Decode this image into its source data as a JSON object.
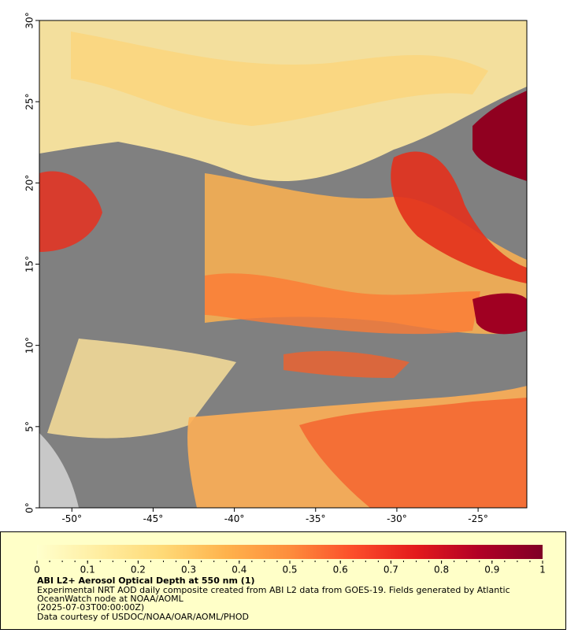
{
  "chart_data": {
    "type": "map",
    "title": "ABI L2+ Aerosol Optical Depth at 550 nm (1)",
    "caption": [
      "Experimental NRT AOD daily composite created from ABI L2 data from GOES-19. Fields generated by Atlantic",
      "OceanWatch node at NOAA/AOML",
      "(2025-07-03T00:00:00Z)",
      "Data courtesy of USDOC/NOAA/OAR/AOML/PHOD"
    ],
    "xlim": [
      -52,
      -22
    ],
    "xticks": [
      {
        "value": -50,
        "label": "-50°"
      },
      {
        "value": -45,
        "label": "-45°"
      },
      {
        "value": -40,
        "label": "-40°"
      },
      {
        "value": -35,
        "label": "-35°"
      },
      {
        "value": -30,
        "label": "-30°"
      },
      {
        "value": -25,
        "label": "-25°"
      }
    ],
    "ylim": [
      0,
      30
    ],
    "yticks": [
      {
        "value": 0,
        "label": "0°"
      },
      {
        "value": 5,
        "label": "5°"
      },
      {
        "value": 10,
        "label": "10°"
      },
      {
        "value": 15,
        "label": "15°"
      },
      {
        "value": 20,
        "label": "20°"
      },
      {
        "value": 25,
        "label": "25°"
      },
      {
        "value": 30,
        "label": "30°"
      }
    ],
    "colorbar": {
      "lim": [
        0,
        1
      ],
      "ticks": [
        0,
        0.1,
        0.2,
        0.3,
        0.4,
        0.5,
        0.6,
        0.7,
        0.8,
        0.9,
        1
      ],
      "colors": [
        "#ffffcc",
        "#ffeda0",
        "#fed976",
        "#feb24c",
        "#fd8d3c",
        "#fc4e2a",
        "#e31a1c",
        "#b10026",
        "#800026"
      ]
    }
  }
}
